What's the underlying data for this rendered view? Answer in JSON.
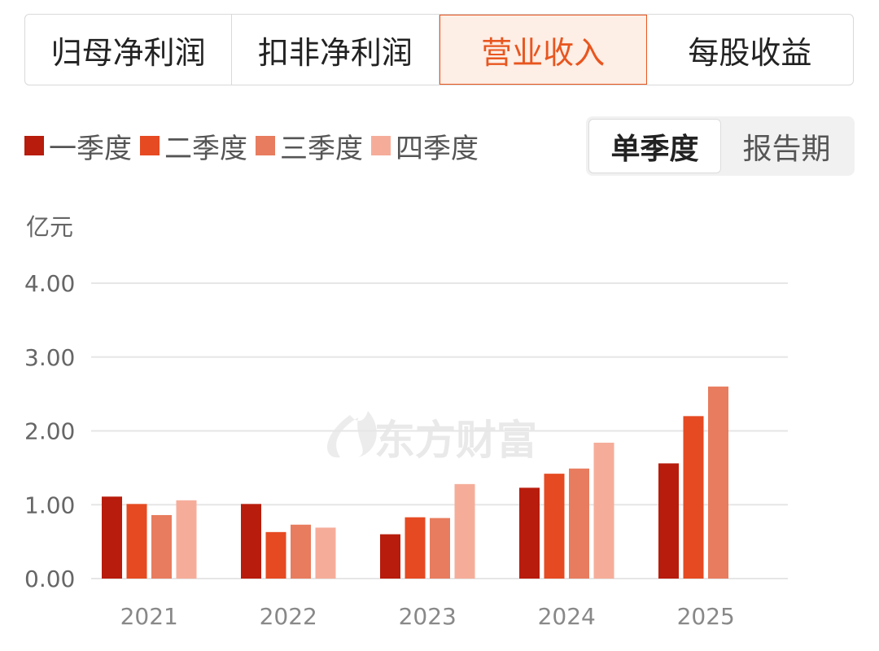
{
  "tabs": [
    {
      "label": "归母净利润",
      "active": false
    },
    {
      "label": "扣非净利润",
      "active": false
    },
    {
      "label": "营业收入",
      "active": true
    },
    {
      "label": "每股收益",
      "active": false
    }
  ],
  "legend": [
    {
      "label": "一季度",
      "color": "#b81c0c"
    },
    {
      "label": "二季度",
      "color": "#e64a22"
    },
    {
      "label": "三季度",
      "color": "#e87c5e"
    },
    {
      "label": "四季度",
      "color": "#f5ad9a"
    }
  ],
  "toggle": {
    "options": [
      {
        "label": "单季度",
        "active": true
      },
      {
        "label": "报告期",
        "active": false
      }
    ]
  },
  "watermark": "东方财富",
  "chart_data": {
    "type": "bar",
    "unit_label": "亿元",
    "categories": [
      "2021",
      "2022",
      "2023",
      "2024",
      "2025"
    ],
    "ylim": [
      0,
      4
    ],
    "yticks": [
      "0.00",
      "1.00",
      "2.00",
      "3.00",
      "4.00"
    ],
    "grid": true,
    "legend_position": "top-left",
    "series": [
      {
        "name": "一季度",
        "color": "#b81c0c",
        "values": [
          1.11,
          1.01,
          0.6,
          1.23,
          1.56
        ]
      },
      {
        "name": "二季度",
        "color": "#e64a22",
        "values": [
          1.01,
          0.63,
          0.83,
          1.42,
          2.2
        ]
      },
      {
        "name": "三季度",
        "color": "#e87c5e",
        "values": [
          0.86,
          0.73,
          0.82,
          1.49,
          2.6
        ]
      },
      {
        "name": "四季度",
        "color": "#f5ad9a",
        "values": [
          1.06,
          0.69,
          1.28,
          1.84,
          null
        ]
      }
    ]
  }
}
